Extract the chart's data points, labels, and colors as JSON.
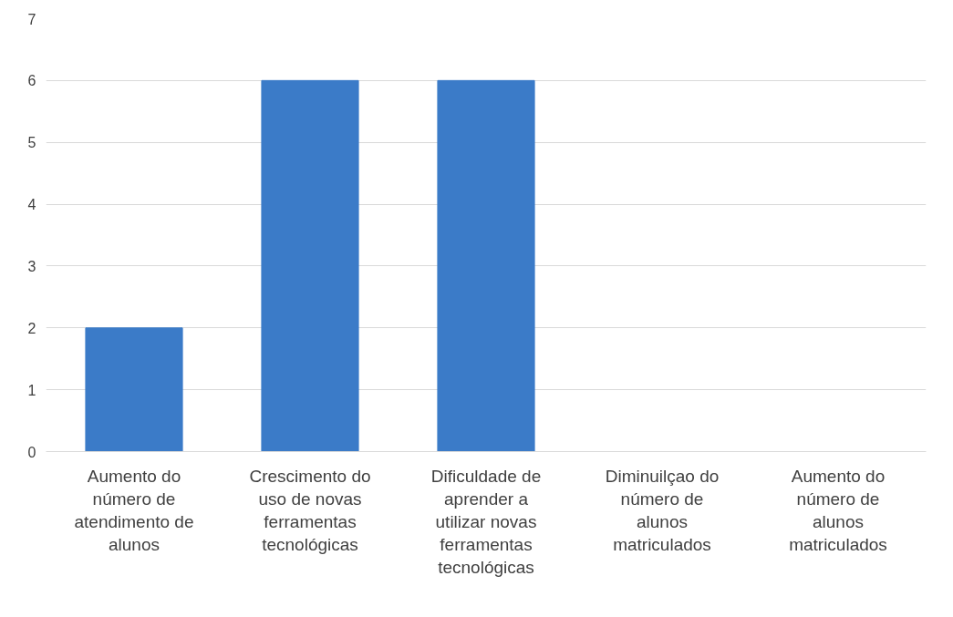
{
  "chart_data": {
    "type": "bar",
    "categories": [
      "Aumento do número de atendimento de alunos",
      "Crescimento do uso de novas ferramentas tecnológicas",
      "Dificuldade de aprender a utilizar novas ferramentas tecnológicas",
      "Diminuilçao do número de alunos matriculados",
      "Aumento do número de alunos matriculados"
    ],
    "values": [
      2,
      6,
      6,
      0,
      0
    ],
    "color": "#3b7bc8",
    "ylim": [
      0,
      7
    ],
    "yticks": [
      0,
      1,
      2,
      3,
      4,
      5,
      6,
      7
    ],
    "grid": "y"
  }
}
